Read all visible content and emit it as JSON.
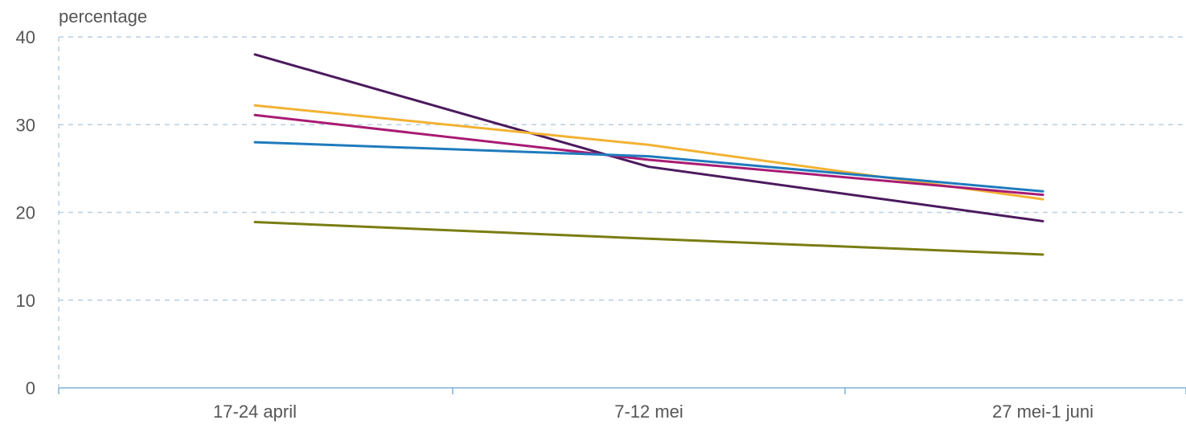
{
  "chart_data": {
    "type": "line",
    "ylabel": "percentage",
    "ylim": [
      0,
      40
    ],
    "yticks": [
      0,
      10,
      20,
      30,
      40
    ],
    "categories": [
      "17-24 april",
      "7-12 mei",
      "27 mei-1 juni"
    ],
    "grid": true,
    "series": [
      {
        "color": "#4b1a5e",
        "values": [
          38,
          25.2,
          19
        ]
      },
      {
        "color": "#f2b233",
        "values": [
          32.2,
          27.7,
          21.5
        ]
      },
      {
        "color": "#a81b73",
        "values": [
          31.1,
          26,
          22
        ]
      },
      {
        "color": "#1f7bbd",
        "values": [
          28,
          26.4,
          22.4
        ]
      },
      {
        "color": "#7a7d12",
        "values": [
          18.9,
          17,
          15.2
        ]
      }
    ]
  }
}
